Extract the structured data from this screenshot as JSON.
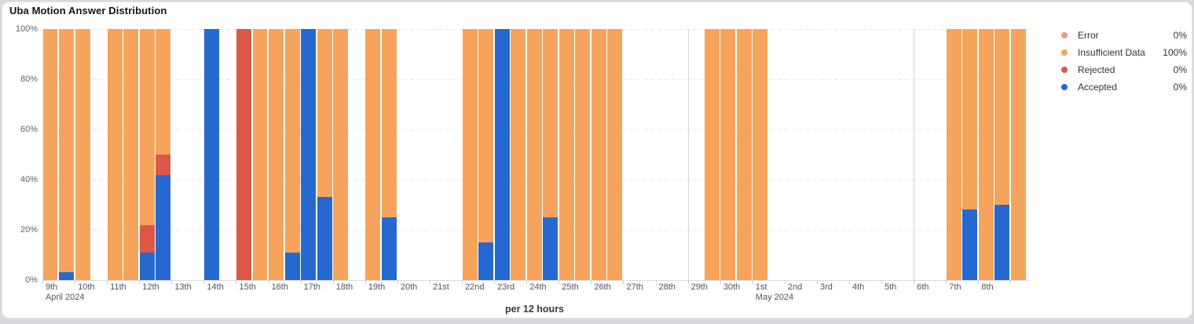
{
  "card": {
    "title": "Uba Motion Answer Distribution"
  },
  "footer": {
    "xaxis_label": "per 12 hours"
  },
  "legend": {
    "items": [
      {
        "label": "Error",
        "value": "0%",
        "color": "#EE9A8C"
      },
      {
        "label": "Insufficient Data",
        "value": "100%",
        "color": "#F6A45C"
      },
      {
        "label": "Rejected",
        "value": "0%",
        "color": "#DB5846"
      },
      {
        "label": "Accepted",
        "value": "0%",
        "color": "#2569D0"
      }
    ]
  },
  "chart_data": {
    "type": "bar",
    "stacked": true,
    "unit": "per 12 hours",
    "ylim": [
      0,
      100
    ],
    "y_tick_labels": [
      "0%",
      "20%",
      "40%",
      "60%",
      "80%",
      "100%"
    ],
    "x_day_labels": [
      "9th",
      "10th",
      "11th",
      "12th",
      "13th",
      "14th",
      "15th",
      "16th",
      "17th",
      "18th",
      "19th",
      "20th",
      "21st",
      "22nd",
      "23rd",
      "24th",
      "25th",
      "26th",
      "27th",
      "28th",
      "29th",
      "30th",
      "1st",
      "2nd",
      "3rd",
      "4th",
      "5th",
      "6th",
      "7th",
      "8th"
    ],
    "month_labels": [
      {
        "tick_index": 0,
        "label": "April 2024"
      },
      {
        "tick_index": 22,
        "label": "May 2024"
      }
    ],
    "solid_vline_tick_indices": [
      20,
      22,
      27
    ],
    "slots_per_day": 2,
    "total_slots": 61,
    "series_order": [
      "accepted",
      "rejected",
      "insufficient",
      "error"
    ],
    "colors": {
      "accepted": "#2569D0",
      "rejected": "#DB5846",
      "insufficient": "#F6A45C",
      "error": "#EE9A8C"
    },
    "bars": [
      {
        "slot": 0,
        "date": "Apr 9 AM",
        "accepted": 0,
        "rejected": 0,
        "insufficient": 100,
        "error": 0
      },
      {
        "slot": 1,
        "date": "Apr 9 PM",
        "accepted": 3,
        "rejected": 0,
        "insufficient": 97,
        "error": 0
      },
      {
        "slot": 2,
        "date": "Apr 10 AM",
        "accepted": 0,
        "rejected": 0,
        "insufficient": 100,
        "error": 0
      },
      {
        "slot": 4,
        "date": "Apr 11 AM",
        "accepted": 0,
        "rejected": 0,
        "insufficient": 100,
        "error": 0
      },
      {
        "slot": 5,
        "date": "Apr 11 PM",
        "accepted": 0,
        "rejected": 0,
        "insufficient": 100,
        "error": 0
      },
      {
        "slot": 6,
        "date": "Apr 12 AM",
        "accepted": 11,
        "rejected": 11,
        "insufficient": 78,
        "error": 0
      },
      {
        "slot": 7,
        "date": "Apr 12 PM",
        "accepted": 42,
        "rejected": 8,
        "insufficient": 50,
        "error": 0
      },
      {
        "slot": 10,
        "date": "Apr 14 AM",
        "accepted": 100,
        "rejected": 0,
        "insufficient": 0,
        "error": 0
      },
      {
        "slot": 12,
        "date": "Apr 15 AM",
        "accepted": 0,
        "rejected": 100,
        "insufficient": 0,
        "error": 0
      },
      {
        "slot": 13,
        "date": "Apr 15 PM",
        "accepted": 0,
        "rejected": 0,
        "insufficient": 100,
        "error": 0
      },
      {
        "slot": 14,
        "date": "Apr 16 AM",
        "accepted": 0,
        "rejected": 0,
        "insufficient": 100,
        "error": 0
      },
      {
        "slot": 15,
        "date": "Apr 16 PM",
        "accepted": 11,
        "rejected": 0,
        "insufficient": 89,
        "error": 0
      },
      {
        "slot": 16,
        "date": "Apr 17 AM",
        "accepted": 100,
        "rejected": 0,
        "insufficient": 0,
        "error": 0
      },
      {
        "slot": 17,
        "date": "Apr 17 PM",
        "accepted": 33,
        "rejected": 0,
        "insufficient": 67,
        "error": 0
      },
      {
        "slot": 18,
        "date": "Apr 18 AM",
        "accepted": 0,
        "rejected": 0,
        "insufficient": 100,
        "error": 0
      },
      {
        "slot": 20,
        "date": "Apr 19 AM",
        "accepted": 0,
        "rejected": 0,
        "insufficient": 100,
        "error": 0
      },
      {
        "slot": 21,
        "date": "Apr 19 PM",
        "accepted": 25,
        "rejected": 0,
        "insufficient": 75,
        "error": 0
      },
      {
        "slot": 26,
        "date": "Apr 22 AM",
        "accepted": 0,
        "rejected": 0,
        "insufficient": 100,
        "error": 0
      },
      {
        "slot": 27,
        "date": "Apr 22 PM",
        "accepted": 15,
        "rejected": 0,
        "insufficient": 85,
        "error": 0
      },
      {
        "slot": 28,
        "date": "Apr 23 AM",
        "accepted": 100,
        "rejected": 0,
        "insufficient": 0,
        "error": 0
      },
      {
        "slot": 29,
        "date": "Apr 23 PM",
        "accepted": 0,
        "rejected": 0,
        "insufficient": 100,
        "error": 0
      },
      {
        "slot": 30,
        "date": "Apr 24 AM",
        "accepted": 0,
        "rejected": 0,
        "insufficient": 100,
        "error": 0
      },
      {
        "slot": 31,
        "date": "Apr 24 PM",
        "accepted": 25,
        "rejected": 0,
        "insufficient": 75,
        "error": 0
      },
      {
        "slot": 32,
        "date": "Apr 25 AM",
        "accepted": 0,
        "rejected": 0,
        "insufficient": 100,
        "error": 0
      },
      {
        "slot": 33,
        "date": "Apr 25 PM",
        "accepted": 0,
        "rejected": 0,
        "insufficient": 100,
        "error": 0
      },
      {
        "slot": 34,
        "date": "Apr 26 AM",
        "accepted": 0,
        "rejected": 0,
        "insufficient": 100,
        "error": 0
      },
      {
        "slot": 35,
        "date": "Apr 26 PM",
        "accepted": 0,
        "rejected": 0,
        "insufficient": 100,
        "error": 0
      },
      {
        "slot": 41,
        "date": "Apr 29 PM",
        "accepted": 0,
        "rejected": 0,
        "insufficient": 100,
        "error": 0
      },
      {
        "slot": 42,
        "date": "Apr 30 AM",
        "accepted": 0,
        "rejected": 0,
        "insufficient": 100,
        "error": 0
      },
      {
        "slot": 43,
        "date": "Apr 30 PM",
        "accepted": 0,
        "rejected": 0,
        "insufficient": 100,
        "error": 0
      },
      {
        "slot": 44,
        "date": "May 1 AM",
        "accepted": 0,
        "rejected": 0,
        "insufficient": 100,
        "error": 0
      },
      {
        "slot": 56,
        "date": "May 7 AM",
        "accepted": 0,
        "rejected": 0,
        "insufficient": 100,
        "error": 0
      },
      {
        "slot": 57,
        "date": "May 7 PM",
        "accepted": 28,
        "rejected": 0,
        "insufficient": 72,
        "error": 0
      },
      {
        "slot": 58,
        "date": "May 8 AM",
        "accepted": 0,
        "rejected": 0,
        "insufficient": 100,
        "error": 0
      },
      {
        "slot": 59,
        "date": "May 8 PM",
        "accepted": 30,
        "rejected": 0,
        "insufficient": 70,
        "error": 0
      },
      {
        "slot": 60,
        "date": "May 9 AM",
        "accepted": 0,
        "rejected": 0,
        "insufficient": 100,
        "error": 0
      }
    ]
  }
}
